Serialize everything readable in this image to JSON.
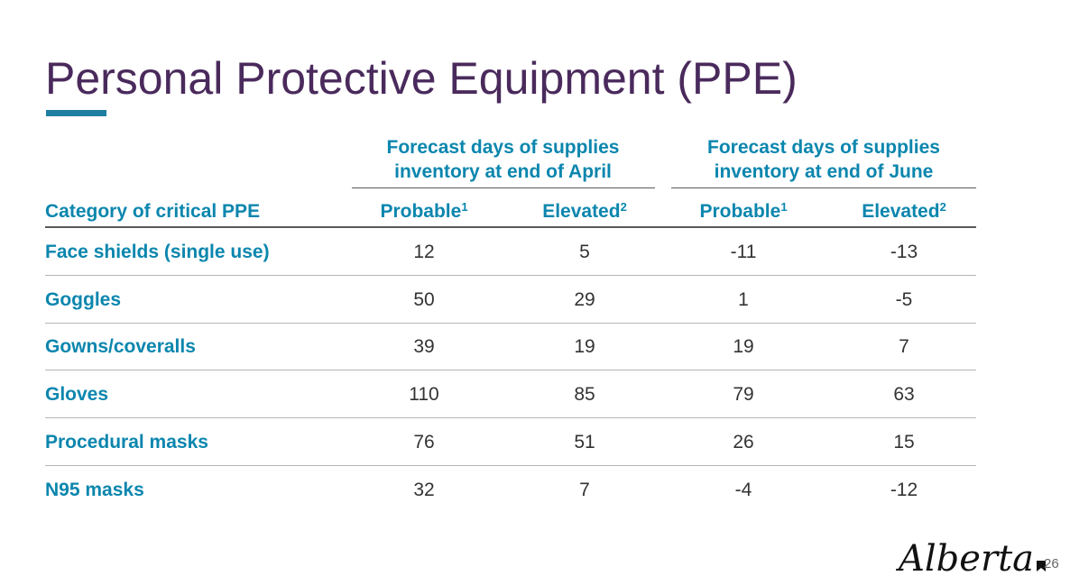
{
  "slide": {
    "title": "Personal Protective Equipment (PPE)",
    "page_number": "26",
    "logo_text": "Alberta",
    "colors": {
      "title": "#4a2a5c",
      "accent_bar": "#1f7fa0",
      "header_text": "#0b86ae",
      "body_text": "#333333"
    }
  },
  "table": {
    "group_headers": [
      "Forecast days of supplies inventory at end of April",
      "Forecast days of supplies inventory at end of June"
    ],
    "category_header": "Category of critical PPE",
    "columns": [
      {
        "label": "Probable",
        "footnote": "1"
      },
      {
        "label": "Elevated",
        "footnote": "2"
      },
      {
        "label": "Probable",
        "footnote": "1"
      },
      {
        "label": "Elevated",
        "footnote": "2"
      }
    ],
    "rows": [
      {
        "category": "Face shields (single use)",
        "values": [
          "12",
          "5",
          "-11",
          "-13"
        ]
      },
      {
        "category": "Goggles",
        "values": [
          "50",
          "29",
          "1",
          "-5"
        ]
      },
      {
        "category": "Gowns/coveralls",
        "values": [
          "39",
          "19",
          "19",
          "7"
        ]
      },
      {
        "category": "Gloves",
        "values": [
          "110",
          "85",
          "79",
          "63"
        ]
      },
      {
        "category": "Procedural masks",
        "values": [
          "76",
          "51",
          "26",
          "15"
        ]
      },
      {
        "category": "N95 masks",
        "values": [
          "32",
          "7",
          "-4",
          "-12"
        ]
      }
    ]
  }
}
